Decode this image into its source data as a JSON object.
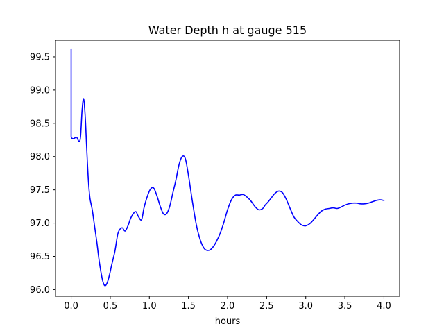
{
  "chart_data": {
    "type": "line",
    "title": "Water Depth h at gauge 515",
    "xlabel": "hours",
    "ylabel": "",
    "xlim": [
      -0.2,
      4.2
    ],
    "ylim": [
      95.9,
      99.75
    ],
    "xticks": [
      0.0,
      0.5,
      1.0,
      1.5,
      2.0,
      2.5,
      3.0,
      3.5,
      4.0
    ],
    "xtick_labels": [
      "0.0",
      "0.5",
      "1.0",
      "1.5",
      "2.0",
      "2.5",
      "3.0",
      "3.5",
      "4.0"
    ],
    "yticks": [
      96.0,
      96.5,
      97.0,
      97.5,
      98.0,
      98.5,
      99.0,
      99.5
    ],
    "ytick_labels": [
      "96.0",
      "96.5",
      "97.0",
      "97.5",
      "98.0",
      "98.5",
      "99.0",
      "99.5"
    ],
    "grid": false,
    "series": [
      {
        "color": "#0000ff",
        "x": [
          0.0,
          0.0,
          0.005,
          0.03,
          0.07,
          0.1,
          0.12,
          0.14,
          0.16,
          0.18,
          0.2,
          0.22,
          0.24,
          0.27,
          0.3,
          0.33,
          0.36,
          0.4,
          0.43,
          0.46,
          0.49,
          0.52,
          0.56,
          0.6,
          0.65,
          0.69,
          0.73,
          0.76,
          0.8,
          0.83,
          0.86,
          0.9,
          0.93,
          0.96,
          1.0,
          1.03,
          1.06,
          1.1,
          1.14,
          1.18,
          1.22,
          1.26,
          1.3,
          1.34,
          1.38,
          1.42,
          1.46,
          1.5,
          1.55,
          1.6,
          1.65,
          1.7,
          1.74,
          1.78,
          1.82,
          1.86,
          1.9,
          1.95,
          2.0,
          2.05,
          2.1,
          2.15,
          2.2,
          2.25,
          2.3,
          2.35,
          2.4,
          2.45,
          2.48,
          2.52,
          2.56,
          2.6,
          2.65,
          2.7,
          2.75,
          2.8,
          2.85,
          2.9,
          2.95,
          3.0,
          3.05,
          3.1,
          3.15,
          3.2,
          3.25,
          3.3,
          3.35,
          3.4,
          3.45,
          3.5,
          3.55,
          3.6,
          3.65,
          3.7,
          3.75,
          3.8,
          3.85,
          3.9,
          3.95,
          4.0
        ],
        "values": [
          99.62,
          98.3,
          98.28,
          98.27,
          98.29,
          98.23,
          98.3,
          98.7,
          98.87,
          98.6,
          98.1,
          97.65,
          97.38,
          97.2,
          96.95,
          96.7,
          96.42,
          96.15,
          96.06,
          96.1,
          96.22,
          96.38,
          96.58,
          96.85,
          96.93,
          96.88,
          96.97,
          97.07,
          97.15,
          97.17,
          97.1,
          97.05,
          97.22,
          97.35,
          97.48,
          97.53,
          97.52,
          97.4,
          97.25,
          97.14,
          97.14,
          97.25,
          97.45,
          97.65,
          97.88,
          98.0,
          97.97,
          97.72,
          97.33,
          96.98,
          96.75,
          96.62,
          96.59,
          96.6,
          96.65,
          96.73,
          96.83,
          97.0,
          97.2,
          97.35,
          97.42,
          97.42,
          97.43,
          97.39,
          97.33,
          97.25,
          97.2,
          97.22,
          97.27,
          97.32,
          97.38,
          97.44,
          97.48,
          97.46,
          97.36,
          97.22,
          97.09,
          97.02,
          96.97,
          96.96,
          96.99,
          97.05,
          97.12,
          97.18,
          97.21,
          97.22,
          97.23,
          97.22,
          97.24,
          97.27,
          97.29,
          97.3,
          97.3,
          97.29,
          97.29,
          97.3,
          97.32,
          97.34,
          97.35,
          97.34
        ]
      }
    ]
  }
}
